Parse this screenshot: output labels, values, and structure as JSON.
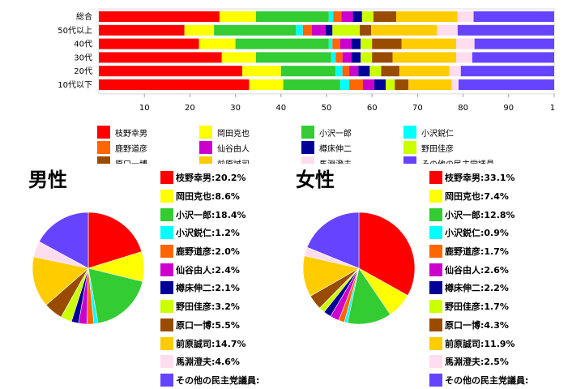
{
  "chart_data": [
    {
      "type": "bar",
      "stacked": true,
      "orientation": "horizontal",
      "categories": [
        "総合",
        "50代以上",
        "40代",
        "30代",
        "20代",
        "10代以下"
      ],
      "xlim": [
        0,
        100
      ],
      "xticks": [
        "10",
        "20",
        "30",
        "40",
        "50",
        "60",
        "70",
        "80",
        "90",
        "1"
      ],
      "series": [
        {
          "name": "枝野幸男",
          "color": "#ff0000",
          "values": [
            26.5,
            18.8,
            22.0,
            27.0,
            31.5,
            33.0
          ]
        },
        {
          "name": "岡田克也",
          "color": "#ffff00",
          "values": [
            8.0,
            6.5,
            8.0,
            7.5,
            8.5,
            7.5
          ]
        },
        {
          "name": "小沢一郎",
          "color": "#33cc33",
          "values": [
            16.0,
            18.0,
            20.5,
            16.5,
            12.0,
            12.5
          ]
        },
        {
          "name": "小沢鋭仁",
          "color": "#00ffff",
          "values": [
            1.0,
            1.5,
            0.8,
            1.0,
            1.5,
            2.0
          ]
        },
        {
          "name": "鹿野道彦",
          "color": "#ff6600",
          "values": [
            1.8,
            2.0,
            1.7,
            1.5,
            1.5,
            3.0
          ]
        },
        {
          "name": "仙谷由人",
          "color": "#cc00cc",
          "values": [
            2.5,
            3.0,
            2.5,
            2.0,
            2.0,
            2.5
          ]
        },
        {
          "name": "樽床伸二",
          "color": "#000099",
          "values": [
            2.0,
            1.5,
            2.0,
            2.0,
            2.5,
            2.5
          ]
        },
        {
          "name": "野田佳彦",
          "color": "#ccff00",
          "values": [
            2.5,
            6.0,
            2.5,
            2.5,
            2.5,
            2.0
          ]
        },
        {
          "name": "原口一博",
          "color": "#994c00",
          "values": [
            5.0,
            2.5,
            6.5,
            4.5,
            4.0,
            3.0
          ]
        },
        {
          "name": "前原誠司",
          "color": "#ffcc00",
          "values": [
            13.5,
            14.5,
            12.0,
            14.0,
            11.0,
            9.5
          ]
        },
        {
          "name": "馬淵澄夫",
          "color": "#ffddee",
          "values": [
            3.5,
            4.5,
            4.0,
            3.5,
            2.5,
            1.5
          ]
        },
        {
          "name": "その他の民主党議員",
          "color": "#6644ff",
          "values": [
            17.7,
            21.2,
            17.5,
            18.0,
            20.5,
            21.0
          ]
        }
      ]
    },
    {
      "type": "pie",
      "title": "男性",
      "slices": [
        {
          "label": "枝野幸男:20.2%",
          "value": 20.2,
          "color": "#ff0000"
        },
        {
          "label": "岡田克也:8.6%",
          "value": 8.6,
          "color": "#ffff00"
        },
        {
          "label": "小沢一郎:18.4%",
          "value": 18.4,
          "color": "#33cc33"
        },
        {
          "label": "小沢鋭仁:1.2%",
          "value": 1.2,
          "color": "#00ffff"
        },
        {
          "label": "鹿野道彦:2.0%",
          "value": 2.0,
          "color": "#ff6600"
        },
        {
          "label": "仙谷由人:2.4%",
          "value": 2.4,
          "color": "#cc00cc"
        },
        {
          "label": "樽床伸二:2.1%",
          "value": 2.1,
          "color": "#000099"
        },
        {
          "label": "野田佳彦:3.2%",
          "value": 3.2,
          "color": "#ccff00"
        },
        {
          "label": "原口一博:5.5%",
          "value": 5.5,
          "color": "#994c00"
        },
        {
          "label": "前原誠司:14.7%",
          "value": 14.7,
          "color": "#ffcc00"
        },
        {
          "label": "馬淵澄夫:4.6%",
          "value": 4.6,
          "color": "#ffddee"
        },
        {
          "label": "その他の民主党議員:",
          "value": 17.1,
          "color": "#6644ff"
        }
      ]
    },
    {
      "type": "pie",
      "title": "女性",
      "slices": [
        {
          "label": "枝野幸男:33.1%",
          "value": 33.1,
          "color": "#ff0000"
        },
        {
          "label": "岡田克也:7.4%",
          "value": 7.4,
          "color": "#ffff00"
        },
        {
          "label": "小沢一郎:12.8%",
          "value": 12.8,
          "color": "#33cc33"
        },
        {
          "label": "小沢鋭仁:0.9%",
          "value": 0.9,
          "color": "#00ffff"
        },
        {
          "label": "鹿野道彦:1.7%",
          "value": 1.7,
          "color": "#ff6600"
        },
        {
          "label": "仙谷由人:2.6%",
          "value": 2.6,
          "color": "#cc00cc"
        },
        {
          "label": "樽床伸二:2.2%",
          "value": 2.2,
          "color": "#000099"
        },
        {
          "label": "野田佳彦:1.7%",
          "value": 1.7,
          "color": "#ccff00"
        },
        {
          "label": "原口一博:4.3%",
          "value": 4.3,
          "color": "#994c00"
        },
        {
          "label": "前原誠司:11.9%",
          "value": 11.9,
          "color": "#ffcc00"
        },
        {
          "label": "馬淵澄夫:2.5%",
          "value": 2.5,
          "color": "#ffddee"
        },
        {
          "label": "その他の民主党議員:",
          "value": 18.9,
          "color": "#6644ff"
        }
      ]
    }
  ]
}
